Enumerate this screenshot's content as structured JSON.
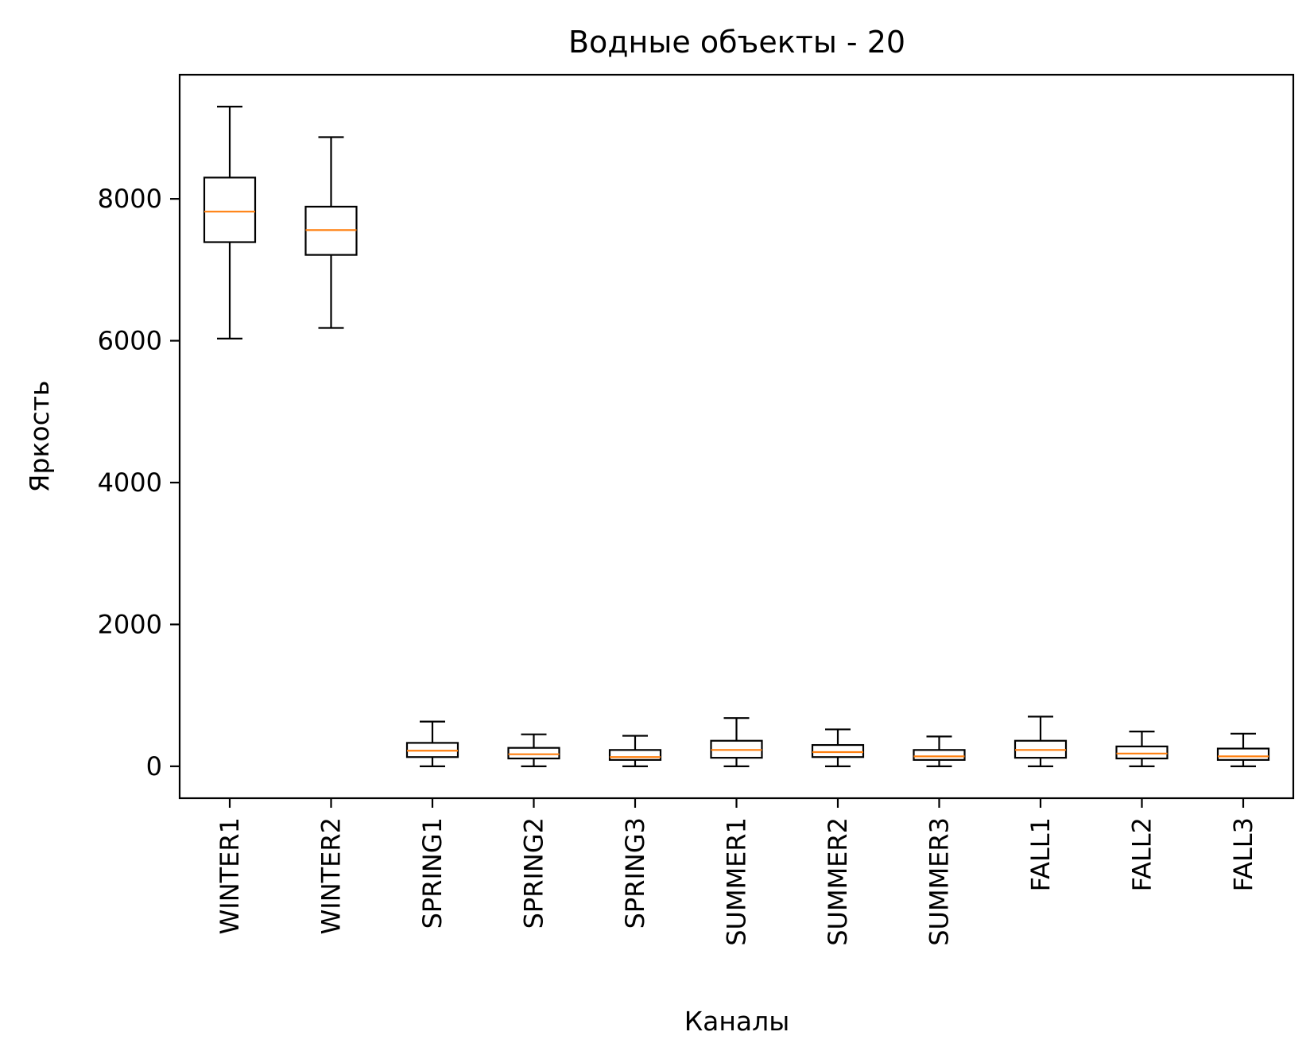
{
  "chart_data": {
    "type": "box",
    "title": "Водные объекты - 20",
    "xlabel": "Каналы",
    "ylabel": "Яркость",
    "ylim": [
      -450,
      9750
    ],
    "yticks": [
      0,
      2000,
      4000,
      6000,
      8000
    ],
    "grid": false,
    "colors": {
      "box": "#000000",
      "median": "#ff7f0e"
    },
    "categories": [
      "WINTER1",
      "WINTER2",
      "SPRING1",
      "SPRING2",
      "SPRING3",
      "SUMMER1",
      "SUMMER2",
      "SUMMER3",
      "FALL1",
      "FALL2",
      "FALL3"
    ],
    "boxes": [
      {
        "category": "WINTER1",
        "whisker_low": 6030,
        "q1": 7390,
        "median": 7820,
        "q3": 8300,
        "whisker_high": 9300
      },
      {
        "category": "WINTER2",
        "whisker_low": 6180,
        "q1": 7210,
        "median": 7560,
        "q3": 7890,
        "whisker_high": 8870
      },
      {
        "category": "SPRING1",
        "whisker_low": 0,
        "q1": 130,
        "median": 220,
        "q3": 330,
        "whisker_high": 630
      },
      {
        "category": "SPRING2",
        "whisker_low": 0,
        "q1": 110,
        "median": 170,
        "q3": 260,
        "whisker_high": 450
      },
      {
        "category": "SPRING3",
        "whisker_low": 0,
        "q1": 90,
        "median": 130,
        "q3": 230,
        "whisker_high": 430
      },
      {
        "category": "SUMMER1",
        "whisker_low": 0,
        "q1": 120,
        "median": 230,
        "q3": 360,
        "whisker_high": 680
      },
      {
        "category": "SUMMER2",
        "whisker_low": 0,
        "q1": 130,
        "median": 200,
        "q3": 300,
        "whisker_high": 520
      },
      {
        "category": "SUMMER3",
        "whisker_low": 0,
        "q1": 90,
        "median": 140,
        "q3": 230,
        "whisker_high": 420
      },
      {
        "category": "FALL1",
        "whisker_low": 0,
        "q1": 120,
        "median": 230,
        "q3": 360,
        "whisker_high": 700
      },
      {
        "category": "FALL2",
        "whisker_low": 0,
        "q1": 110,
        "median": 180,
        "q3": 280,
        "whisker_high": 490
      },
      {
        "category": "FALL3",
        "whisker_low": 0,
        "q1": 90,
        "median": 140,
        "q3": 250,
        "whisker_high": 460
      }
    ]
  }
}
